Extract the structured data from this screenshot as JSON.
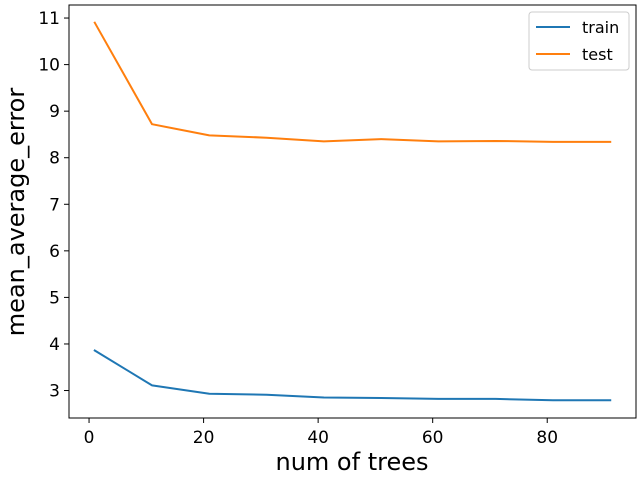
{
  "chart_data": {
    "type": "line",
    "title": "",
    "xlabel": "num of trees",
    "ylabel": "mean_average_error",
    "x": [
      1,
      11,
      21,
      31,
      41,
      51,
      61,
      71,
      81,
      91
    ],
    "series": [
      {
        "name": "train",
        "color": "#1f77b4",
        "values": [
          3.86,
          3.11,
          2.93,
          2.91,
          2.85,
          2.84,
          2.82,
          2.82,
          2.79,
          2.79
        ]
      },
      {
        "name": "test",
        "color": "#ff7f0e",
        "values": [
          10.9,
          8.72,
          8.48,
          8.43,
          8.35,
          8.4,
          8.35,
          8.36,
          8.34,
          8.34
        ]
      }
    ],
    "xlim": [
      -3.5,
      95.5
    ],
    "ylim": [
      2.41,
      11.28
    ],
    "xticks": [
      0,
      20,
      40,
      60,
      80
    ],
    "yticks": [
      3,
      4,
      5,
      6,
      7,
      8,
      9,
      10,
      11
    ],
    "grid": false,
    "legend_position": "top-right"
  }
}
